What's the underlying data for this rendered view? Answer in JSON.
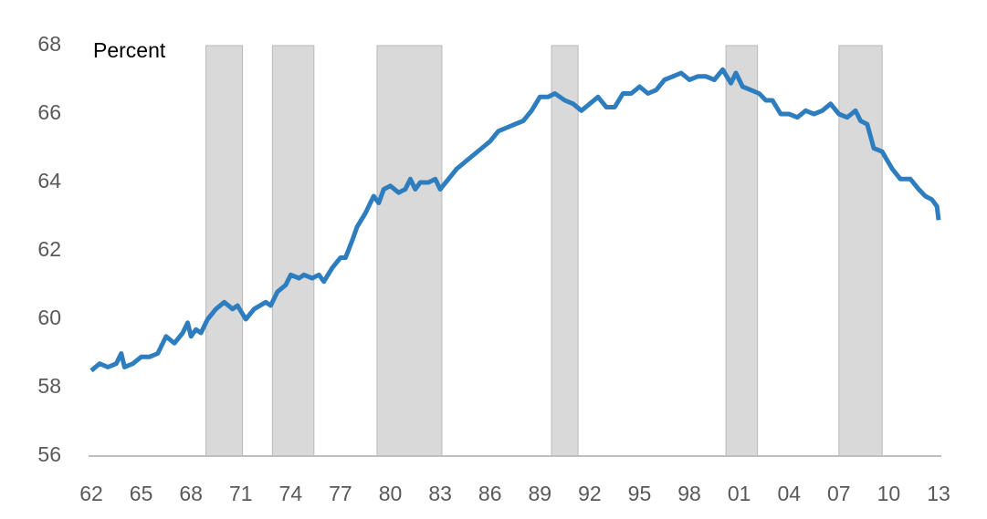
{
  "chart_data": {
    "type": "line",
    "annotation": "Percent",
    "x": [
      1962.0,
      1962.5,
      1963.0,
      1963.5,
      1963.8,
      1964.0,
      1964.5,
      1965.0,
      1965.5,
      1966.0,
      1966.5,
      1967.0,
      1967.5,
      1967.8,
      1968.0,
      1968.3,
      1968.6,
      1969.0,
      1969.5,
      1970.0,
      1970.5,
      1970.8,
      1971.3,
      1971.8,
      1972.5,
      1972.8,
      1973.2,
      1973.7,
      1974.0,
      1974.5,
      1974.8,
      1975.3,
      1975.7,
      1976.0,
      1976.5,
      1977.0,
      1977.3,
      1977.7,
      1978.0,
      1978.5,
      1979.0,
      1979.3,
      1979.6,
      1980.0,
      1980.5,
      1980.9,
      1981.2,
      1981.5,
      1981.8,
      1982.3,
      1982.7,
      1983.0,
      1983.5,
      1984.0,
      1984.5,
      1985.0,
      1985.5,
      1986.0,
      1986.5,
      1987.0,
      1987.5,
      1988.0,
      1988.5,
      1989.0,
      1989.5,
      1989.9,
      1990.5,
      1991.0,
      1991.5,
      1992.0,
      1992.5,
      1993.0,
      1993.5,
      1994.0,
      1994.5,
      1995.0,
      1995.5,
      1996.0,
      1996.5,
      1997.0,
      1997.5,
      1998.0,
      1998.5,
      1999.0,
      1999.5,
      2000.0,
      2000.5,
      2000.8,
      2001.2,
      2001.7,
      2002.2,
      2002.6,
      2003.0,
      2003.5,
      2004.0,
      2004.5,
      2005.0,
      2005.5,
      2006.0,
      2006.5,
      2007.0,
      2007.5,
      2008.0,
      2008.3,
      2008.7,
      2009.1,
      2009.6,
      2010.2,
      2010.7,
      2011.3,
      2011.8,
      2012.2,
      2012.6,
      2012.9,
      2013.0
    ],
    "series": [
      {
        "color": "#2e7ebf",
        "values": [
          58.5,
          58.7,
          58.6,
          58.7,
          59.0,
          58.6,
          58.7,
          58.9,
          58.9,
          59.0,
          59.5,
          59.3,
          59.6,
          59.9,
          59.5,
          59.7,
          59.6,
          60.0,
          60.3,
          60.5,
          60.3,
          60.4,
          60.0,
          60.3,
          60.5,
          60.4,
          60.8,
          61.0,
          61.3,
          61.2,
          61.3,
          61.2,
          61.3,
          61.1,
          61.5,
          61.8,
          61.8,
          62.3,
          62.7,
          63.1,
          63.6,
          63.4,
          63.8,
          63.9,
          63.7,
          63.8,
          64.1,
          63.8,
          64.0,
          64.0,
          64.1,
          63.8,
          64.1,
          64.4,
          64.6,
          64.8,
          65.0,
          65.2,
          65.5,
          65.6,
          65.7,
          65.8,
          66.1,
          66.5,
          66.5,
          66.6,
          66.4,
          66.3,
          66.1,
          66.3,
          66.5,
          66.2,
          66.2,
          66.6,
          66.6,
          66.8,
          66.6,
          66.7,
          67.0,
          67.1,
          67.2,
          67.0,
          67.1,
          67.1,
          67.0,
          67.3,
          66.9,
          67.2,
          66.8,
          66.7,
          66.6,
          66.4,
          66.4,
          66.0,
          66.0,
          65.9,
          66.1,
          66.0,
          66.1,
          66.3,
          66.0,
          65.9,
          66.1,
          65.8,
          65.7,
          65.0,
          64.9,
          64.4,
          64.1,
          64.1,
          63.8,
          63.6,
          63.5,
          63.3,
          62.9
        ]
      }
    ],
    "shaded_periods": [
      [
        1968.9,
        1971.1
      ],
      [
        1972.9,
        1975.4
      ],
      [
        1979.2,
        1983.1
      ],
      [
        1989.7,
        1991.3
      ],
      [
        2000.2,
        2002.1
      ],
      [
        2007.0,
        2009.6
      ]
    ],
    "shade_color": "#d9d9d9",
    "xlim": [
      1962,
      2013
    ],
    "xticks": [
      {
        "value": 1962,
        "label": "62"
      },
      {
        "value": 1965,
        "label": "65"
      },
      {
        "value": 1968,
        "label": "68"
      },
      {
        "value": 1971,
        "label": "71"
      },
      {
        "value": 1974,
        "label": "74"
      },
      {
        "value": 1977,
        "label": "77"
      },
      {
        "value": 1980,
        "label": "80"
      },
      {
        "value": 1983,
        "label": "83"
      },
      {
        "value": 1986,
        "label": "86"
      },
      {
        "value": 1989,
        "label": "89"
      },
      {
        "value": 1992,
        "label": "92"
      },
      {
        "value": 1995,
        "label": "95"
      },
      {
        "value": 1998,
        "label": "98"
      },
      {
        "value": 2001,
        "label": "01"
      },
      {
        "value": 2004,
        "label": "04"
      },
      {
        "value": 2007,
        "label": "07"
      },
      {
        "value": 2010,
        "label": "10"
      },
      {
        "value": 2013,
        "label": "13"
      }
    ],
    "ylim": [
      56,
      68
    ],
    "yticks": [
      56,
      58,
      60,
      62,
      64,
      66,
      68
    ]
  }
}
